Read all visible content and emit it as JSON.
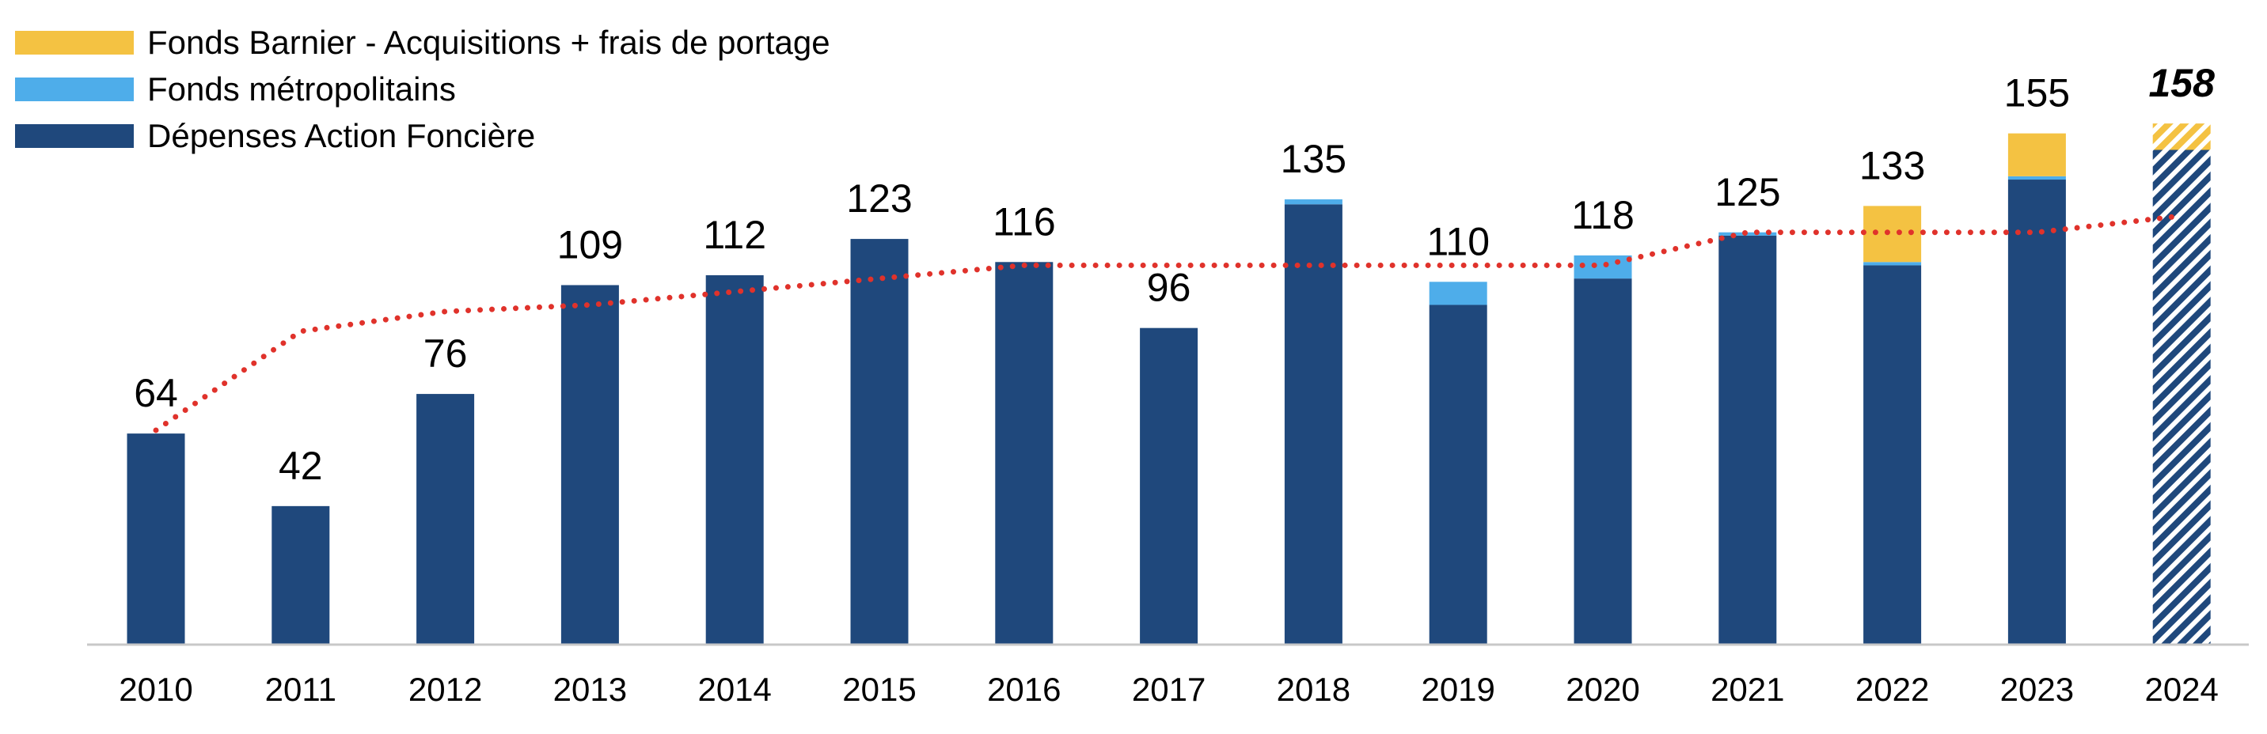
{
  "chart_data": {
    "type": "bar",
    "stacked": true,
    "title": "",
    "xlabel": "",
    "ylabel": "",
    "ylim": [
      0,
      175
    ],
    "grid": false,
    "legend_placement": "top-left",
    "categories": [
      "2010",
      "2011",
      "2012",
      "2013",
      "2014",
      "2015",
      "2016",
      "2017",
      "2018",
      "2019",
      "2020",
      "2021",
      "2022",
      "2023",
      "2024"
    ],
    "series": [
      {
        "name": "Dépenses Action Foncière",
        "color": "#1F487C",
        "values": [
          64,
          42,
          76,
          109,
          112,
          123,
          116,
          96,
          133.5,
          103,
          111,
          124,
          115,
          141,
          150
        ]
      },
      {
        "name": "Fonds métropolitains",
        "color": "#4EADEA",
        "values": [
          0,
          0,
          0,
          0,
          0,
          0,
          0,
          0,
          1.5,
          7,
          7,
          1,
          1,
          1,
          0
        ]
      },
      {
        "name": "Fonds Barnier - Acquisitions + frais de portage",
        "color": "#F4C242",
        "values": [
          0,
          0,
          0,
          0,
          0,
          0,
          0,
          0,
          0,
          0,
          0,
          0,
          17,
          13,
          8
        ]
      }
    ],
    "totals": [
      "64",
      "42",
      "76",
      "109",
      "112",
      "123",
      "116",
      "96",
      "135",
      "110",
      "118",
      "125",
      "133",
      "155",
      "158"
    ],
    "projected_category": "2024",
    "trend_line": {
      "style": "dotted",
      "color": "#E0322B",
      "values": [
        65,
        95,
        101,
        103,
        107,
        111,
        115,
        115,
        115,
        115,
        115,
        125,
        125,
        125,
        130
      ]
    },
    "legend": [
      {
        "label": "Fonds Barnier - Acquisitions + frais de portage",
        "color": "#F4C242"
      },
      {
        "label": "Fonds métropolitains",
        "color": "#4EADEA"
      },
      {
        "label": "Dépenses Action Foncière",
        "color": "#1F487C"
      }
    ]
  }
}
